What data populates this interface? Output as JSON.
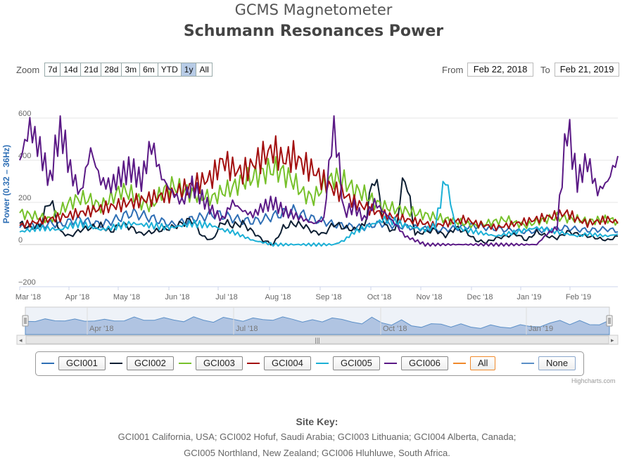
{
  "header": {
    "subtitle": "GCMS Magnetometer",
    "title": "Schumann Resonances Power"
  },
  "range_selector": {
    "zoom_label": "Zoom",
    "buttons": [
      "7d",
      "14d",
      "21d",
      "28d",
      "3m",
      "6m",
      "YTD",
      "1y",
      "All"
    ],
    "active": "1y",
    "from_label": "From",
    "from_value": "Feb 22, 2018",
    "to_label": "To",
    "to_value": "Feb 21, 2019"
  },
  "legend": {
    "items": [
      {
        "label": "GCI001",
        "color": "#2f6fb5"
      },
      {
        "label": "GCI002",
        "color": "#0d1f33"
      },
      {
        "label": "GCI003",
        "color": "#77c12b"
      },
      {
        "label": "GCI004",
        "color": "#a30f0f"
      },
      {
        "label": "GCI005",
        "color": "#1cb0d6"
      },
      {
        "label": "GCI006",
        "color": "#5b1a86"
      },
      {
        "label": "All",
        "color": "#f08a2c"
      },
      {
        "label": "None",
        "color": "#5b8fc7"
      }
    ]
  },
  "credits": "Highcharts.com",
  "site_key": {
    "title": "Site Key:",
    "lines": [
      "GCI001 California, USA;  GCI002 Hofuf, Saudi Arabia;  GCI003 Lithuania;  GCI004 Alberta, Canada;",
      "GCI005 Northland, New Zealand;  GCI006 Hluhluwe, South Africa."
    ]
  },
  "chart_data": {
    "type": "line",
    "title": "Schumann Resonances Power",
    "ylabel": "Power (0.32 – 36Hz)",
    "ylim": [
      -200,
      600
    ],
    "yticks": [
      "600",
      "400",
      "200",
      "0",
      "−200"
    ],
    "x_tick_labels": [
      "Mar '18",
      "Apr '18",
      "May '18",
      "Jun '18",
      "Jul '18",
      "Aug '18",
      "Sep '18",
      "Oct '18",
      "Nov '18",
      "Dec '18",
      "Jan '19",
      "Feb '19"
    ],
    "navigator_labels": [
      "Apr '18",
      "Jul '18",
      "Oct '18",
      "Jan '19"
    ],
    "navigator_handle": "|||",
    "grid": true,
    "x_start": "2018-02-22",
    "x_end": "2019-02-21",
    "series": [
      {
        "name": "GCI001",
        "color": "#2f6fb5",
        "values": [
          80,
          90,
          85,
          100,
          95,
          110,
          120,
          105,
          95,
          110,
          130,
          150,
          140,
          125,
          110,
          95,
          105,
          120,
          130,
          145,
          140,
          125,
          115,
          110,
          120,
          135,
          150,
          160,
          140,
          120,
          110,
          95,
          90,
          85,
          80,
          95,
          100,
          90,
          85,
          80,
          75,
          70,
          72,
          78,
          85,
          90,
          80,
          75,
          70,
          65,
          60,
          65,
          70,
          75,
          80,
          72,
          68,
          70,
          75,
          60
        ]
      },
      {
        "name": "GCI002",
        "color": "#0d1f33",
        "values": [
          100,
          80,
          90,
          220,
          60,
          40,
          70,
          80,
          90,
          60,
          100,
          80,
          50,
          60,
          70,
          80,
          100,
          120,
          40,
          20,
          110,
          90,
          100,
          60,
          20,
          0,
          80,
          100,
          90,
          60,
          50,
          100,
          80,
          70,
          90,
          340,
          90,
          60,
          340,
          50,
          60,
          70,
          40,
          80,
          60,
          20,
          10,
          30,
          40,
          50,
          20,
          60,
          40,
          30,
          60,
          50,
          40,
          30,
          20,
          40
        ]
      },
      {
        "name": "GCI003",
        "color": "#77c12b",
        "values": [
          150,
          140,
          130,
          120,
          160,
          200,
          220,
          210,
          180,
          220,
          260,
          240,
          200,
          180,
          250,
          280,
          260,
          240,
          230,
          220,
          250,
          270,
          300,
          320,
          340,
          360,
          340,
          300,
          240,
          220,
          280,
          320,
          300,
          260,
          240,
          200,
          180,
          170,
          160,
          150,
          140,
          130,
          120,
          110,
          100,
          90,
          100,
          110,
          120,
          100,
          90,
          110,
          120,
          130,
          125,
          120,
          110,
          115,
          120,
          110
        ]
      },
      {
        "name": "GCI004",
        "color": "#a30f0f",
        "values": [
          90,
          100,
          110,
          120,
          130,
          140,
          150,
          160,
          170,
          180,
          190,
          200,
          210,
          220,
          230,
          240,
          260,
          280,
          300,
          320,
          400,
          360,
          340,
          380,
          420,
          450,
          400,
          420,
          380,
          350,
          300,
          260,
          240,
          200,
          180,
          160,
          140,
          130,
          120,
          110,
          100,
          90,
          100,
          110,
          120,
          100,
          90,
          80,
          90,
          100,
          110,
          120,
          130,
          140,
          150,
          120,
          100,
          110,
          120,
          100
        ]
      },
      {
        "name": "GCI005",
        "color": "#1cb0d6",
        "values": [
          60,
          70,
          80,
          75,
          70,
          90,
          100,
          85,
          70,
          80,
          90,
          100,
          95,
          90,
          85,
          80,
          90,
          100,
          95,
          90,
          70,
          60,
          40,
          20,
          10,
          0,
          0,
          0,
          0,
          0,
          0,
          0,
          20,
          60,
          80,
          100,
          120,
          110,
          90,
          80,
          70,
          90,
          320,
          80,
          70,
          60,
          50,
          40,
          50,
          60,
          70,
          80,
          70,
          60,
          50,
          40,
          50,
          45,
          40,
          50
        ]
      },
      {
        "name": "GCI006",
        "color": "#5b1a86",
        "values": [
          400,
          560,
          450,
          300,
          580,
          350,
          240,
          450,
          300,
          280,
          330,
          360,
          300,
          480,
          320,
          250,
          200,
          280,
          220,
          160,
          120,
          200,
          160,
          140,
          180,
          200,
          160,
          140,
          120,
          100,
          120,
          600,
          150,
          180,
          120,
          200,
          150,
          100,
          40,
          20,
          0,
          0,
          0,
          0,
          0,
          0,
          0,
          0,
          0,
          0,
          0,
          0,
          50,
          80,
          570,
          300,
          400,
          250,
          300,
          420
        ]
      }
    ]
  }
}
